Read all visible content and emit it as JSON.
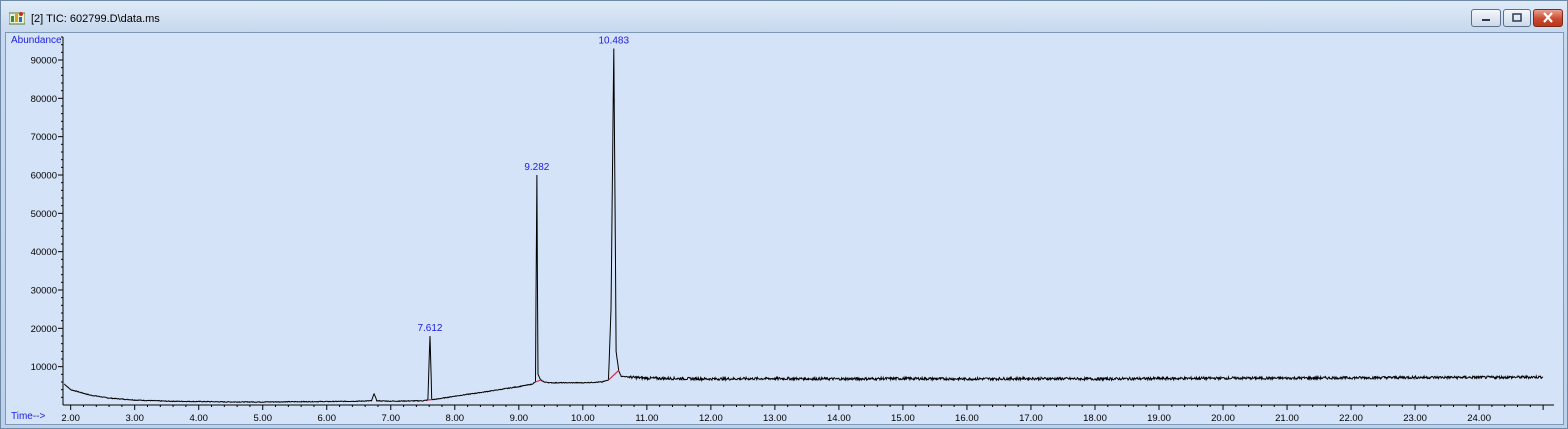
{
  "window": {
    "title": "[2] TIC: 602799.D\\data.ms",
    "icon": "chromatogram-app-icon"
  },
  "controls": {
    "minimize": "minimize-icon",
    "maximize": "maximize-icon",
    "close": "close-icon"
  },
  "colors": {
    "plot_background": "#d5e3f8",
    "trace": "#000000",
    "peak_label": "#1c1ce0",
    "baseline_marker": "#e0284a"
  },
  "chart_data": {
    "type": "line",
    "title": "",
    "xlabel": "Time-->",
    "ylabel": "Abundance",
    "xlim": [
      1.88,
      25.17
    ],
    "ylim": [
      0,
      96000
    ],
    "x_ticks": [
      "2.00",
      "3.00",
      "4.00",
      "5.00",
      "6.00",
      "7.00",
      "8.00",
      "9.00",
      "10.00",
      "11.00",
      "12.00",
      "13.00",
      "14.00",
      "15.00",
      "16.00",
      "17.00",
      "18.00",
      "19.00",
      "20.00",
      "21.00",
      "22.00",
      "23.00",
      "24.00"
    ],
    "y_ticks": [
      "10000",
      "20000",
      "30000",
      "40000",
      "50000",
      "60000",
      "70000",
      "80000",
      "90000"
    ],
    "grid": false,
    "series": [
      {
        "x": [
          1.9,
          2.0,
          2.3,
          2.6,
          3.0,
          3.5,
          4.0,
          4.5,
          5.0,
          5.5,
          6.0,
          6.5,
          6.7,
          6.74,
          6.78,
          7.0,
          7.5,
          7.58,
          7.612,
          7.64,
          7.7,
          8.0,
          8.5,
          9.0,
          9.2,
          9.26,
          9.282,
          9.3,
          9.34,
          9.4,
          9.5,
          10.0,
          10.3,
          10.4,
          10.44,
          10.483,
          10.5,
          10.52,
          10.56,
          10.6,
          10.8,
          11.0,
          12.0,
          13.0,
          14.0,
          15.0,
          16.0,
          17.0,
          18.0,
          19.0,
          20.0,
          21.0,
          22.0,
          23.0,
          24.0,
          25.0
        ],
        "y": [
          5500,
          4000,
          2600,
          1800,
          1300,
          1000,
          900,
          800,
          800,
          850,
          900,
          1000,
          1100,
          3000,
          1100,
          1000,
          1100,
          1300,
          18000,
          1400,
          1500,
          2300,
          3500,
          4800,
          5400,
          6000,
          60000,
          8000,
          6500,
          6000,
          5800,
          5800,
          6000,
          6500,
          25000,
          93000,
          60000,
          14000,
          9000,
          7500,
          7200,
          7000,
          6800,
          6900,
          6800,
          6900,
          6800,
          6900,
          6800,
          6900,
          7000,
          7000,
          7100,
          7200,
          7200,
          7300
        ]
      }
    ],
    "annotations": [
      {
        "text": "7.612",
        "x": 7.612,
        "y": 18000
      },
      {
        "text": "9.282",
        "x": 9.282,
        "y": 60000
      },
      {
        "text": "10.483",
        "x": 10.483,
        "y": 93000
      }
    ]
  }
}
